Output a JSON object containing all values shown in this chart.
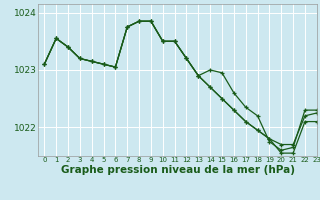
{
  "background_color": "#cde8f0",
  "plot_bg_color": "#cde8f0",
  "line_color": "#1a5c1a",
  "grid_color": "#ffffff",
  "xlabel": "Graphe pression niveau de la mer (hPa)",
  "xlabel_fontsize": 7.5,
  "title": "",
  "xlim": [
    -0.5,
    23
  ],
  "ylim": [
    1021.5,
    1024.15
  ],
  "yticks": [
    1022,
    1023,
    1024
  ],
  "xticks": [
    0,
    1,
    2,
    3,
    4,
    5,
    6,
    7,
    8,
    9,
    10,
    11,
    12,
    13,
    14,
    15,
    16,
    17,
    18,
    19,
    20,
    21,
    22,
    23
  ],
  "series1_x": [
    0,
    1,
    2,
    3,
    4,
    5,
    6,
    7,
    8,
    9,
    10,
    11,
    12,
    13,
    14,
    15,
    16,
    17,
    18,
    19,
    20,
    21,
    22,
    23
  ],
  "series1_y": [
    1023.1,
    1023.55,
    1023.4,
    1023.2,
    1023.15,
    1023.1,
    1023.05,
    1023.75,
    1023.85,
    1023.85,
    1023.5,
    1023.5,
    1023.2,
    1022.9,
    1023.0,
    1022.95,
    1022.6,
    1022.35,
    1022.2,
    1021.75,
    1021.6,
    1021.65,
    1022.3,
    1022.3
  ],
  "series2_x": [
    0,
    1,
    2,
    3,
    4,
    5,
    6,
    7,
    8,
    9,
    10,
    11,
    12,
    13,
    14,
    15,
    16,
    17,
    18,
    19,
    20,
    21,
    22,
    23
  ],
  "series2_y": [
    1023.1,
    1023.55,
    1023.4,
    1023.2,
    1023.15,
    1023.1,
    1023.05,
    1023.75,
    1023.85,
    1023.85,
    1023.5,
    1023.5,
    1023.2,
    1022.9,
    1022.7,
    1022.5,
    1022.3,
    1022.1,
    1021.95,
    1021.8,
    1021.7,
    1021.7,
    1022.2,
    1022.25
  ],
  "series3_x": [
    0,
    1,
    2,
    3,
    4,
    5,
    6,
    7,
    8,
    9,
    10,
    11,
    12,
    13,
    14,
    15,
    16,
    17,
    18,
    19,
    20,
    21,
    22,
    23
  ],
  "series3_y": [
    1023.1,
    1023.55,
    1023.4,
    1023.2,
    1023.15,
    1023.1,
    1023.05,
    1023.75,
    1023.85,
    1023.85,
    1023.5,
    1023.5,
    1023.2,
    1022.9,
    1022.7,
    1022.5,
    1022.3,
    1022.1,
    1021.95,
    1021.8,
    1021.55,
    1021.55,
    1022.1,
    1022.1
  ],
  "marker": "+",
  "marker_size": 3.5,
  "linewidth": 0.9
}
